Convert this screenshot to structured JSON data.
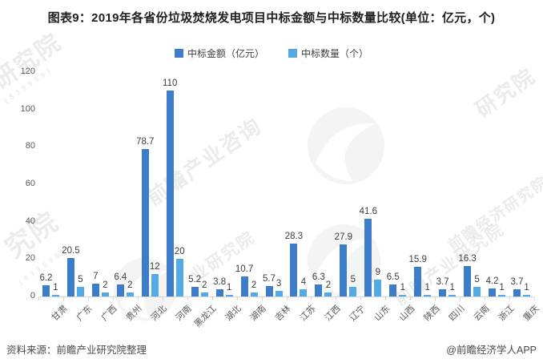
{
  "title": "图表9：2019年各省份垃圾焚烧发电项目中标金额与中标数量比较(单位：亿元，个)",
  "legend": {
    "items": [
      {
        "label": "中标金额（亿元）",
        "color": "#3D7CC9"
      },
      {
        "label": "中标数量（个）",
        "color": "#52AAE7"
      }
    ]
  },
  "chart_data": {
    "type": "bar",
    "title": "2019年各省份垃圾焚烧发电项目中标金额与中标数量比较",
    "unit_note": "单位：亿元，个",
    "categories": [
      "甘肃",
      "广东",
      "广西",
      "贵州",
      "河北",
      "河南",
      "黑龙江",
      "湖北",
      "湖南",
      "吉林",
      "江苏",
      "江西",
      "辽宁",
      "山东",
      "山西",
      "陕西",
      "四川",
      "云南",
      "浙江",
      "重庆"
    ],
    "series": [
      {
        "name": "中标金额（亿元）",
        "color": "#3D7CC9",
        "values": [
          6.2,
          20.5,
          7,
          6.4,
          78.7,
          110,
          5.2,
          3.8,
          10.7,
          5.7,
          28.3,
          6.3,
          27.9,
          41.6,
          6.5,
          15.9,
          3.7,
          16.3,
          4.2,
          3.7
        ]
      },
      {
        "name": "中标数量（个）",
        "color": "#52AAE7",
        "values": [
          1,
          5,
          2,
          2,
          12,
          20,
          2,
          1,
          2,
          3,
          4,
          2,
          5,
          9,
          1,
          1,
          1,
          5,
          1,
          1
        ]
      }
    ],
    "xlabel": "",
    "ylabel": "",
    "ylim": [
      0,
      120
    ],
    "yticks": [
      0,
      20,
      40,
      60,
      80,
      100,
      120
    ],
    "grid": false,
    "legend_position": "top",
    "data_labels": true
  },
  "footer": {
    "source": "资料来源：前瞻产业研究院整理",
    "credit": "@前瞻经济学人APP"
  },
  "watermarks": {
    "items": [
      {
        "text": "研究院"
      },
      {
        "text": "( 8 3 9 5 9 9 )"
      },
      {
        "text": "究院"
      },
      {
        "text": "( 8 3 9 5 9 9 )"
      },
      {
        "text": "前瞻产业咨询"
      },
      {
        "text": "研究院"
      },
      {
        "text": "前瞻经济研究院"
      },
      {
        "text": "前瞻产业研究院"
      },
      {
        "text": "业研究院"
      }
    ]
  }
}
